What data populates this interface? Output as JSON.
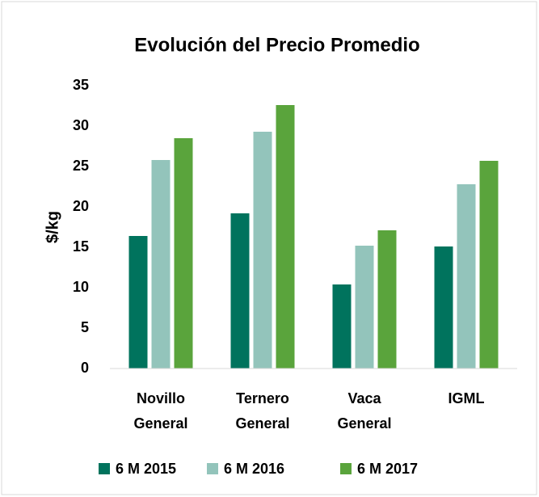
{
  "chart_data": {
    "type": "bar",
    "title": "Evolución del Precio Promedio",
    "y_label": "$/kg",
    "categories": [
      "Novillo General",
      "Ternero General",
      "Vaca General",
      "IGML"
    ],
    "series": [
      {
        "name": "6 M 2015",
        "color": "#00735d",
        "values": [
          16.4,
          19.2,
          10.4,
          15.1
        ]
      },
      {
        "name": "6 M 2016",
        "color": "#93c4bb",
        "values": [
          25.8,
          29.3,
          15.2,
          22.8
        ]
      },
      {
        "name": "6 M 2017",
        "color": "#5aa43c",
        "values": [
          28.5,
          32.6,
          17.1,
          25.7
        ]
      }
    ],
    "ylim": [
      0,
      35
    ],
    "yticks": [
      0,
      5,
      10,
      15,
      20,
      25,
      30,
      35
    ],
    "grid": false,
    "legend": "bottom"
  }
}
